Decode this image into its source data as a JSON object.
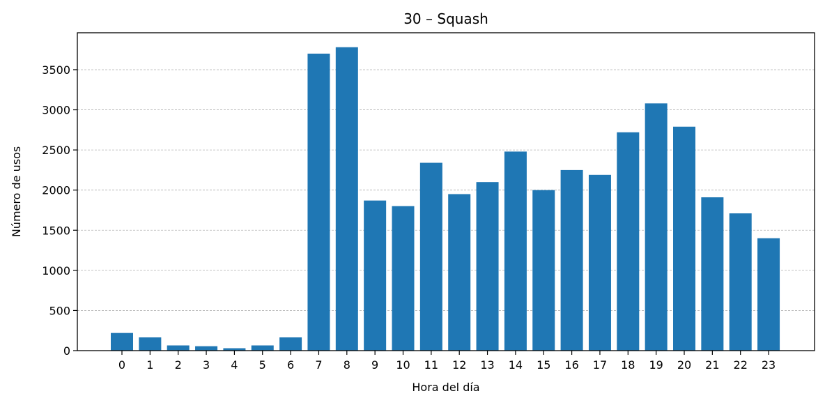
{
  "chart_data": {
    "type": "bar",
    "title": "30 – Squash",
    "xlabel": "Hora del día",
    "ylabel": "Número de usos",
    "categories": [
      "0",
      "1",
      "2",
      "3",
      "4",
      "5",
      "6",
      "7",
      "8",
      "9",
      "10",
      "11",
      "12",
      "13",
      "14",
      "15",
      "16",
      "17",
      "18",
      "19",
      "20",
      "21",
      "22",
      "23"
    ],
    "values": [
      220,
      165,
      65,
      55,
      30,
      65,
      165,
      3700,
      3780,
      1870,
      1800,
      2340,
      1950,
      2100,
      2480,
      2000,
      2250,
      2190,
      2720,
      3080,
      2790,
      1910,
      1710,
      1400
    ],
    "ylim": [
      0,
      3960
    ],
    "yticks": [
      0,
      500,
      1000,
      1500,
      2000,
      2500,
      3000,
      3500
    ],
    "grid": "y-dashed",
    "bar_color": "#1f77b4"
  }
}
